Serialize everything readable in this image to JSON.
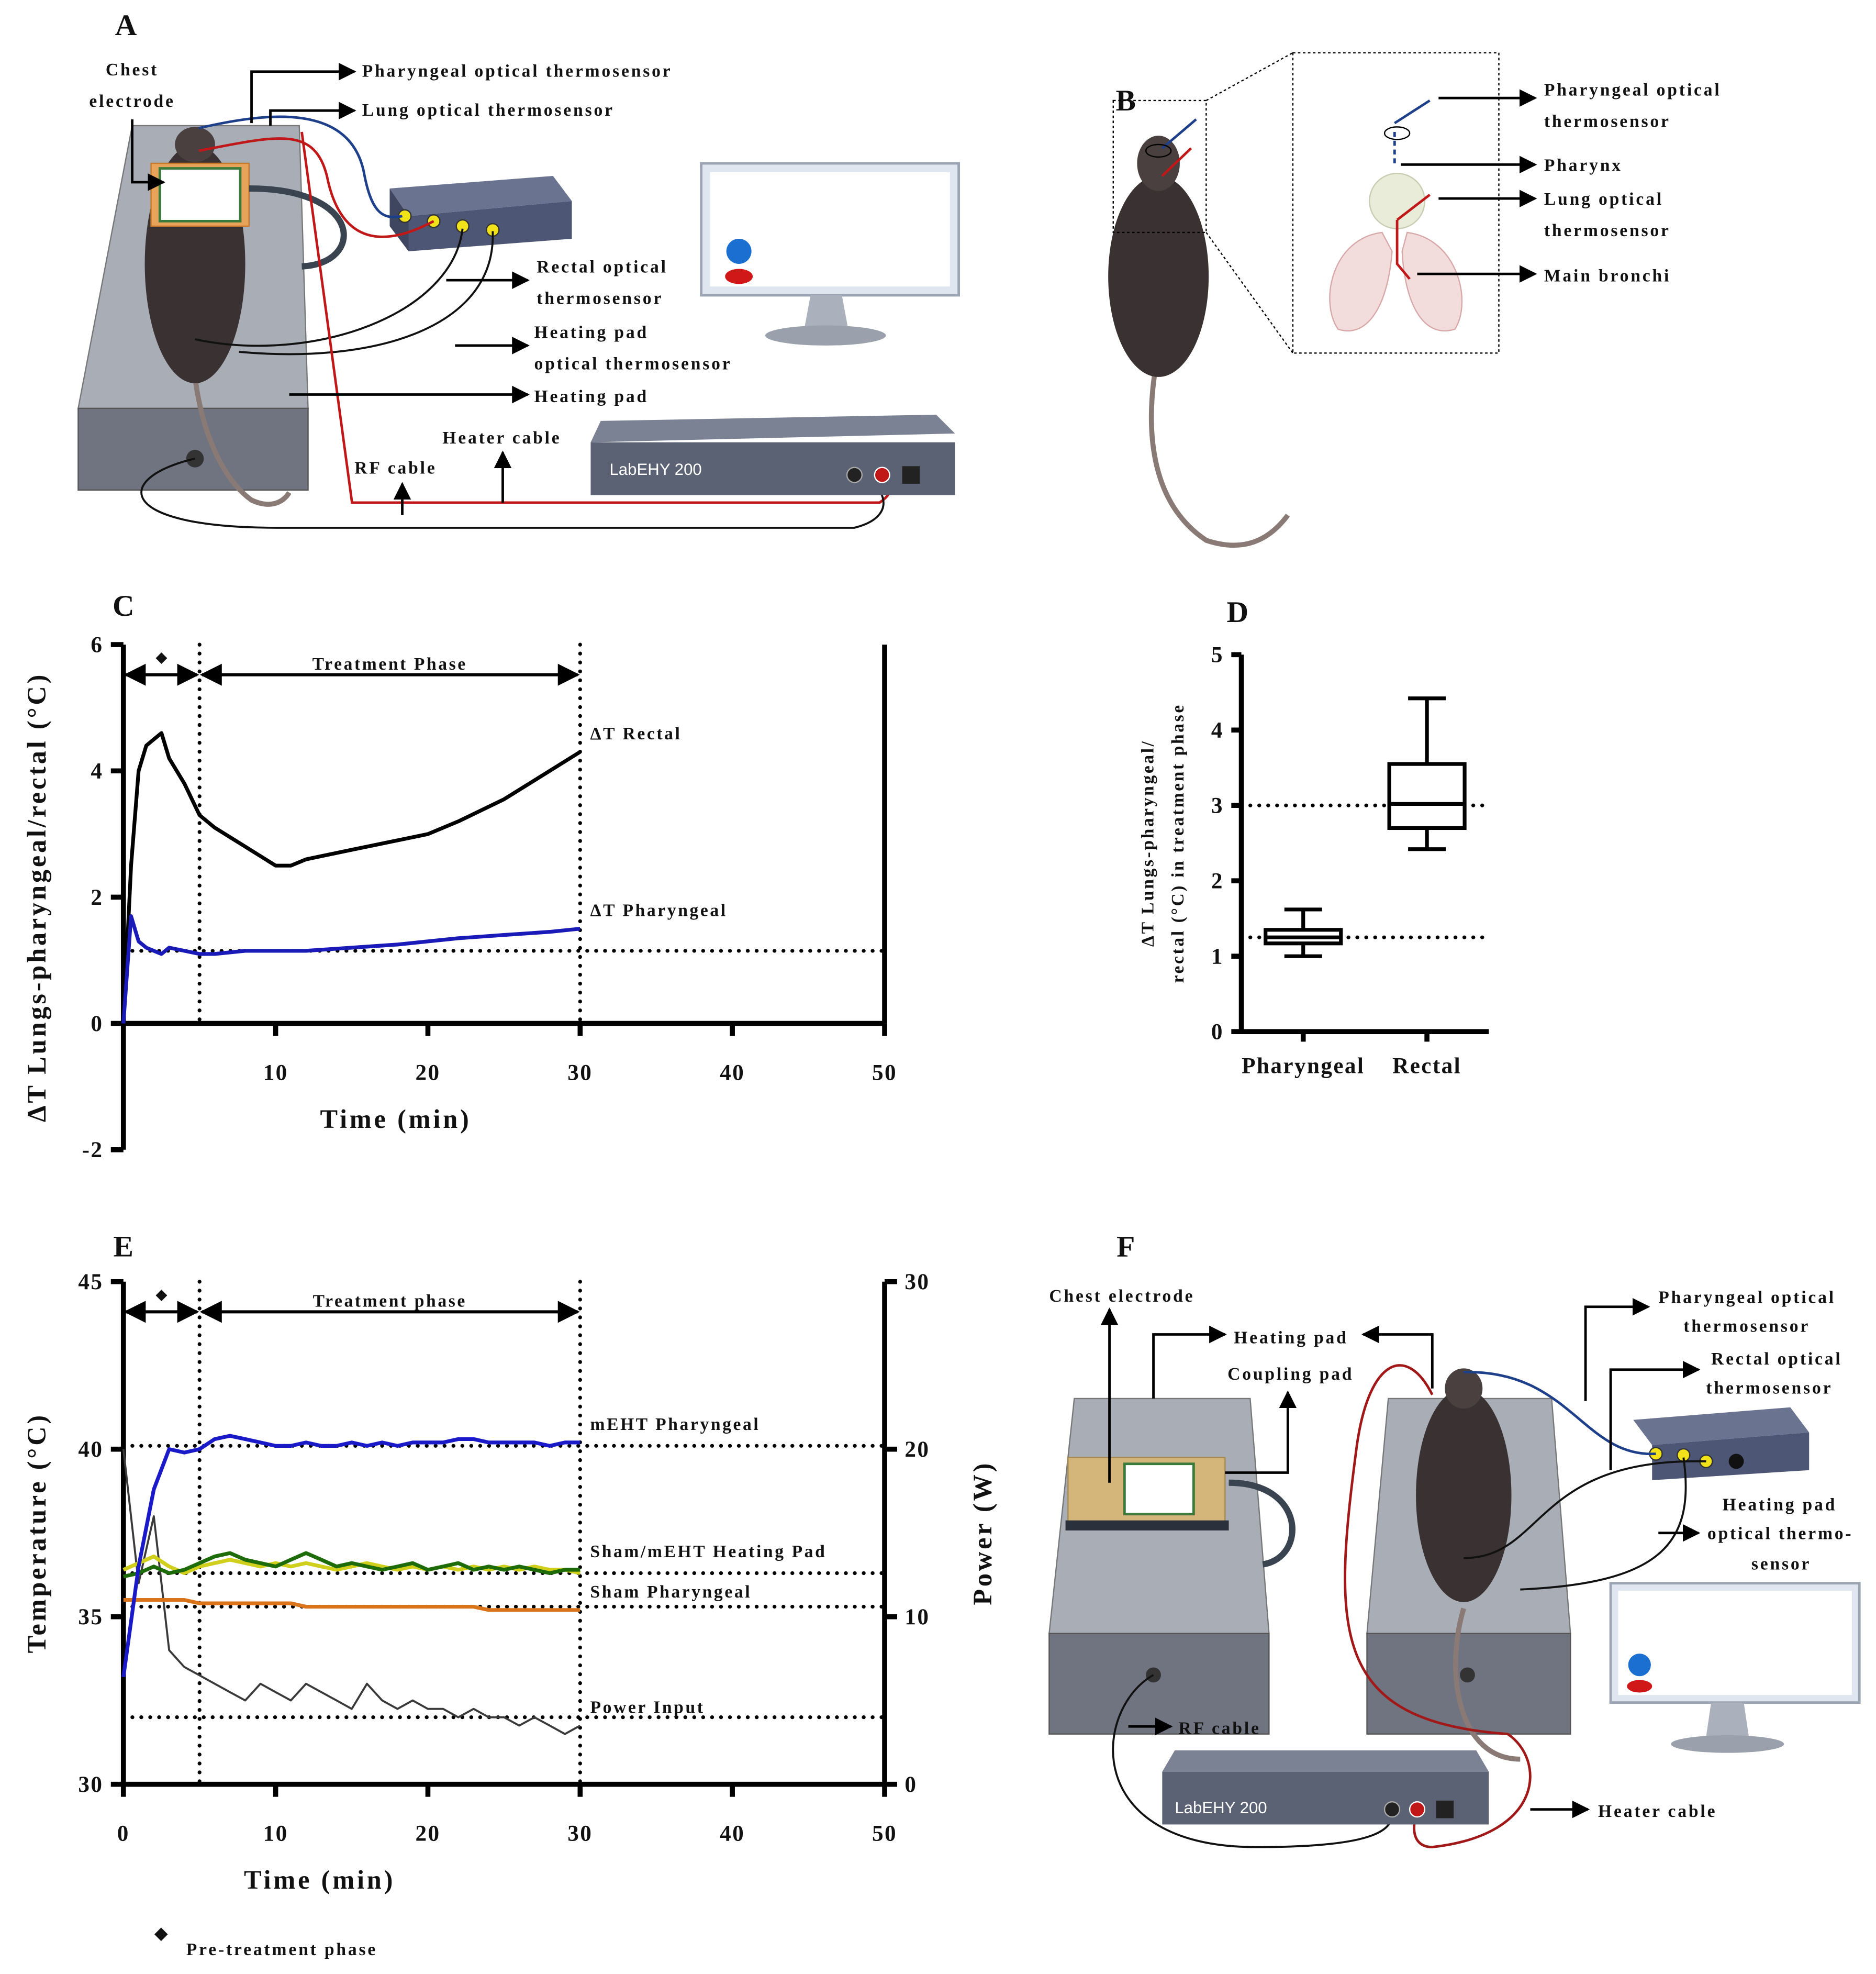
{
  "panel_labels": [
    "A",
    "B",
    "C",
    "D",
    "E",
    "F"
  ],
  "panel_a": {
    "chest_electrode": [
      "Chest",
      "electrode"
    ],
    "pharyngeal_sensor": "Pharyngeal optical thermosensor",
    "lung_sensor": "Lung optical thermosensor",
    "rectal_sensor": [
      "Rectal optical",
      "thermosensor"
    ],
    "pad_sensor": [
      "Heating pad",
      "optical thermosensor"
    ],
    "heating_pad": "Heating pad",
    "heater_cable": "Heater cable",
    "rf_cable": "RF cable",
    "device": "LabEHY 200"
  },
  "panel_b": {
    "pharyngeal_sensor": [
      "Pharyngeal optical",
      "thermosensor"
    ],
    "pharynx": "Pharynx",
    "lung_sensor": [
      "Lung optical",
      "thermosensor"
    ],
    "main_bronchi": "Main bronchi"
  },
  "panel_f": {
    "chest_electrode": "Chest electrode",
    "heating_pad": "Heating pad",
    "coupling_pad": "Coupling pad",
    "pharyngeal_sensor": [
      "Pharyngeal optical",
      "thermosensor"
    ],
    "rectal_sensor": [
      "Rectal optical",
      "thermosensor"
    ],
    "pad_sensor": [
      "Heating pad",
      "optical thermo-",
      "sensor"
    ],
    "rf_cable": "RF cable",
    "heater_cable": "Heater cable",
    "device": "LabEHY 200"
  },
  "footnote": {
    "symbol": "◆",
    "text": "Pre-treatment phase"
  },
  "chart_data": [
    {
      "type": "line",
      "xlabel": "Time (min)",
      "ylabel": "ΔT Lungs-pharyngeal/rectal (°C)",
      "pre_marker": "◆",
      "phase_label": "Treatment Phase",
      "x": [
        0,
        0.5,
        1,
        1.5,
        2,
        2.5,
        3,
        4,
        5,
        6,
        8,
        10,
        11,
        12,
        15,
        18,
        20,
        22,
        25,
        28,
        30
      ],
      "series": [
        {
          "name": "ΔT Rectal",
          "color": "#000000",
          "values": [
            0,
            2.5,
            4.0,
            4.4,
            4.5,
            4.6,
            4.2,
            3.8,
            3.3,
            3.1,
            2.8,
            2.5,
            2.5,
            2.6,
            2.75,
            2.9,
            3.0,
            3.2,
            3.55,
            4.0,
            4.3
          ]
        },
        {
          "name": "ΔT Pharyngeal",
          "color": "#1a1ab8",
          "values": [
            0,
            1.7,
            1.3,
            1.2,
            1.15,
            1.1,
            1.2,
            1.15,
            1.1,
            1.1,
            1.15,
            1.15,
            1.15,
            1.15,
            1.2,
            1.25,
            1.3,
            1.35,
            1.4,
            1.45,
            1.5
          ]
        }
      ],
      "xlim": [
        0,
        50
      ],
      "xticks": [
        10,
        20,
        30,
        40,
        50
      ],
      "ylim": [
        -2,
        6
      ],
      "yticks": [
        -2,
        0,
        2,
        4,
        6
      ],
      "vlines": [
        5,
        30
      ],
      "hlines": [
        1.15
      ]
    },
    {
      "type": "box",
      "ylabel": [
        "ΔT Lungs-pharyngeal/",
        "rectal (°C) in treatment phase"
      ],
      "categories": [
        "Pharyngeal",
        "Rectal"
      ],
      "boxes": [
        {
          "min": 1.0,
          "q1": 1.17,
          "median": 1.25,
          "q3": 1.35,
          "max": 1.62
        },
        {
          "min": 2.42,
          "q1": 2.7,
          "median": 3.02,
          "q3": 3.55,
          "max": 4.42
        }
      ],
      "ylim": [
        0,
        5
      ],
      "yticks": [
        0,
        1,
        2,
        3,
        4,
        5
      ],
      "hlines": [
        3.0,
        1.25
      ]
    },
    {
      "type": "line",
      "xlabel": "Time (min)",
      "ylabel": "Temperature (°C)",
      "y2label": "Power (W)",
      "pre_marker": "◆",
      "phase_label": "Treatment phase",
      "x": [
        0,
        1,
        2,
        3,
        4,
        5,
        6,
        7,
        8,
        9,
        10,
        11,
        12,
        13,
        14,
        15,
        16,
        17,
        18,
        19,
        20,
        21,
        22,
        23,
        24,
        25,
        26,
        27,
        28,
        29,
        30
      ],
      "series": [
        {
          "color": "#3a3a3a",
          "axis": "y2",
          "name": "Power Input",
          "values": [
            20,
            12,
            16,
            8,
            7,
            6.5,
            6,
            5.5,
            5,
            6,
            5.5,
            5,
            6,
            5.5,
            5,
            4.5,
            6,
            5,
            4.5,
            5,
            4.5,
            4.5,
            4,
            4.5,
            4,
            4,
            3.5,
            4,
            3.5,
            3,
            3.5
          ]
        },
        {
          "color": "#cfcf1c",
          "values": [
            36.4,
            36.6,
            36.8,
            36.5,
            36.3,
            36.5,
            36.6,
            36.7,
            36.6,
            36.5,
            36.6,
            36.5,
            36.6,
            36.5,
            36.4,
            36.5,
            36.6,
            36.5,
            36.4,
            36.5,
            36.4,
            36.5,
            36.4,
            36.5,
            36.4,
            36.5,
            36.4,
            36.5,
            36.4,
            36.4,
            36.3
          ]
        },
        {
          "name": "Sham/mEHT Heating Pad",
          "color": "#1e6b0a",
          "values": [
            36.2,
            36.3,
            36.5,
            36.3,
            36.4,
            36.6,
            36.8,
            36.9,
            36.7,
            36.6,
            36.5,
            36.7,
            36.9,
            36.7,
            36.5,
            36.6,
            36.5,
            36.4,
            36.5,
            36.6,
            36.4,
            36.5,
            36.6,
            36.4,
            36.5,
            36.4,
            36.5,
            36.4,
            36.3,
            36.4,
            36.4
          ]
        },
        {
          "name": "Sham Pharyngeal",
          "color": "#d9741a",
          "values": [
            35.5,
            35.5,
            35.5,
            35.5,
            35.5,
            35.4,
            35.4,
            35.4,
            35.4,
            35.4,
            35.4,
            35.4,
            35.3,
            35.3,
            35.3,
            35.3,
            35.3,
            35.3,
            35.3,
            35.3,
            35.3,
            35.3,
            35.3,
            35.3,
            35.2,
            35.2,
            35.2,
            35.2,
            35.2,
            35.2,
            35.2
          ]
        },
        {
          "name": "mEHT Pharyngeal",
          "color": "#1a1ac8",
          "values": [
            33.2,
            36.5,
            38.8,
            40.0,
            39.9,
            40.0,
            40.3,
            40.4,
            40.3,
            40.2,
            40.1,
            40.1,
            40.2,
            40.1,
            40.1,
            40.2,
            40.1,
            40.2,
            40.1,
            40.2,
            40.2,
            40.2,
            40.3,
            40.3,
            40.2,
            40.2,
            40.2,
            40.2,
            40.1,
            40.2,
            40.2
          ]
        }
      ],
      "xlim": [
        0,
        50
      ],
      "xticks": [
        0,
        10,
        20,
        30,
        40,
        50
      ],
      "ylim": [
        30,
        45
      ],
      "yticks": [
        30,
        35,
        40,
        45
      ],
      "y2lim": [
        0,
        30
      ],
      "y2ticks": [
        0,
        10,
        20,
        30
      ],
      "vlines": [
        5,
        30
      ],
      "hlines": [
        40.1,
        36.3,
        35.3
      ],
      "y2hlines": [
        4
      ]
    }
  ]
}
